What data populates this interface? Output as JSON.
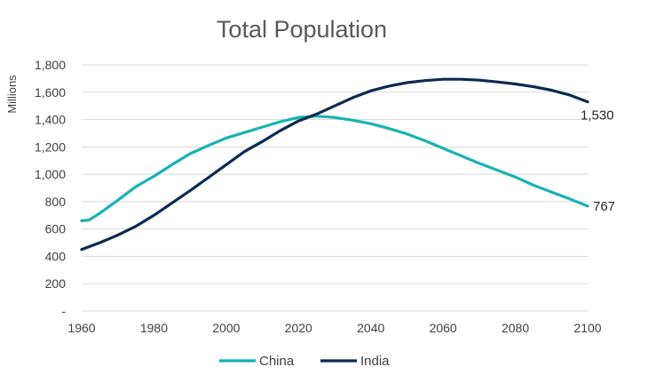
{
  "chart_data": {
    "type": "line",
    "title": "Total Population",
    "ylabel": "Millions",
    "xlabel": "",
    "xlim": [
      1960,
      2100
    ],
    "ylim": [
      0,
      1800
    ],
    "x_ticks": [
      1960,
      1980,
      2000,
      2020,
      2040,
      2060,
      2080,
      2100
    ],
    "y_ticks": [
      {
        "value": 0,
        "label": "-"
      },
      {
        "value": 200,
        "label": "200"
      },
      {
        "value": 400,
        "label": "400"
      },
      {
        "value": 600,
        "label": "600"
      },
      {
        "value": 800,
        "label": "800"
      },
      {
        "value": 1000,
        "label": "1,000"
      },
      {
        "value": 1200,
        "label": "1,200"
      },
      {
        "value": 1400,
        "label": "1,400"
      },
      {
        "value": 1600,
        "label": "1,600"
      },
      {
        "value": 1800,
        "label": "1,800"
      }
    ],
    "grid": true,
    "legend": "bottom",
    "series": [
      {
        "name": "China",
        "color": "#17b3b3",
        "end_label": "767",
        "x": [
          1960,
          1962,
          1965,
          1970,
          1975,
          1980,
          1985,
          1990,
          1995,
          2000,
          2005,
          2010,
          2015,
          2020,
          2025,
          2030,
          2035,
          2040,
          2045,
          2050,
          2055,
          2060,
          2065,
          2070,
          2075,
          2080,
          2085,
          2090,
          2095,
          2100
        ],
        "y": [
          660,
          665,
          715,
          810,
          910,
          985,
          1070,
          1150,
          1210,
          1265,
          1305,
          1345,
          1385,
          1415,
          1425,
          1415,
          1395,
          1370,
          1335,
          1295,
          1245,
          1190,
          1135,
          1080,
          1030,
          980,
          920,
          870,
          820,
          767
        ]
      },
      {
        "name": "India",
        "color": "#0d2a52",
        "end_label": "1,530",
        "x": [
          1960,
          1965,
          1970,
          1975,
          1980,
          1985,
          1990,
          1995,
          2000,
          2005,
          2010,
          2015,
          2020,
          2025,
          2030,
          2035,
          2040,
          2045,
          2050,
          2055,
          2060,
          2065,
          2070,
          2075,
          2080,
          2085,
          2090,
          2095,
          2100
        ],
        "y": [
          450,
          500,
          555,
          620,
          700,
          790,
          880,
          975,
          1070,
          1165,
          1240,
          1320,
          1390,
          1440,
          1500,
          1560,
          1610,
          1645,
          1670,
          1685,
          1695,
          1695,
          1688,
          1675,
          1660,
          1640,
          1615,
          1580,
          1530
        ]
      }
    ]
  }
}
